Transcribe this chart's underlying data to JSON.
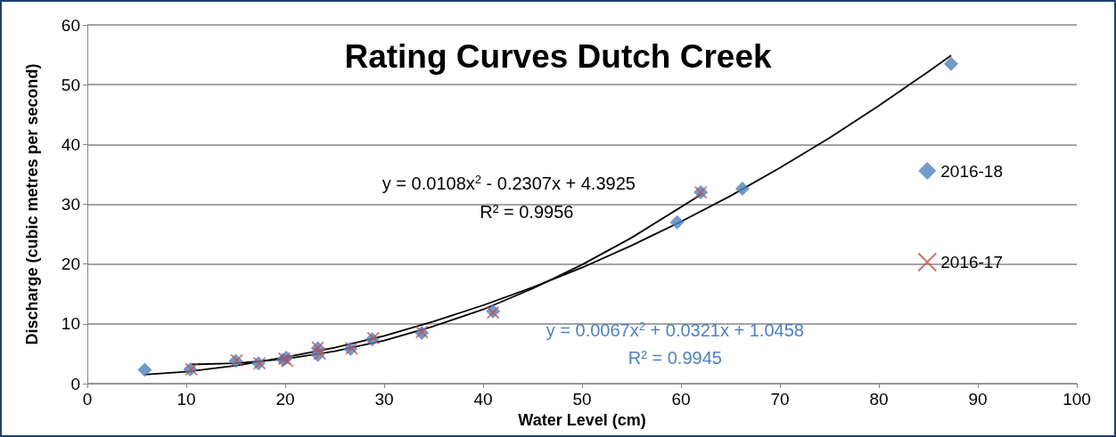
{
  "chart_data": {
    "type": "scatter",
    "title": "Rating Curves Dutch Creek",
    "xlabel": "Water Level (cm)",
    "ylabel": "Discharge (cubic metres per second)",
    "xlim": [
      0,
      100
    ],
    "xticks": [
      0,
      10,
      20,
      30,
      40,
      50,
      60,
      70,
      80,
      90,
      100
    ],
    "ylim": [
      0,
      60
    ],
    "yticks": [
      0,
      10,
      20,
      30,
      40,
      50,
      60
    ],
    "grid": "y",
    "legend": "right",
    "series": [
      {
        "name": "2016-18",
        "color": "#4f81bd",
        "marker": "diamond",
        "x": [
          5.8,
          10.4,
          15.0,
          17.3,
          19.8,
          20.1,
          23.3,
          23.3,
          26.6,
          28.8,
          33.8,
          41.0,
          59.6,
          62.0,
          66.2,
          87.3
        ],
        "values": [
          2.3,
          2.4,
          3.8,
          3.4,
          4.0,
          4.3,
          5.9,
          4.8,
          5.8,
          7.4,
          8.5,
          12.1,
          27.0,
          32.0,
          32.6,
          53.5
        ]
      },
      {
        "name": "2016-17",
        "color": "#c0504d",
        "marker": "cross",
        "x": [
          10.5,
          15.1,
          17.4,
          19.9,
          20.2,
          23.3,
          23.5,
          26.7,
          28.9,
          33.8,
          41.0,
          62.0
        ],
        "values": [
          2.4,
          3.9,
          3.4,
          4.2,
          3.8,
          6.0,
          5.0,
          5.9,
          7.6,
          8.6,
          11.9,
          32.0
        ]
      },
      {
        "type": "line",
        "color": "#000000",
        "marker": "none",
        "x": [
          5.8,
          10,
          15,
          20,
          25,
          30,
          35,
          40,
          45,
          50,
          55,
          60,
          65,
          70,
          75,
          80,
          85,
          87.3
        ],
        "values": [
          1.5,
          2.0,
          3.0,
          4.4,
          6.0,
          8.0,
          10.4,
          13.1,
          16.1,
          19.4,
          23.1,
          27.1,
          31.4,
          36.1,
          41.1,
          46.5,
          52.2,
          54.9
        ]
      },
      {
        "type": "line",
        "color": "#000000",
        "marker": "none",
        "x": [
          10.5,
          15,
          20,
          25,
          30,
          35,
          40,
          45,
          50,
          55,
          62
        ],
        "values": [
          3.2,
          3.4,
          4.1,
          5.4,
          7.2,
          9.6,
          12.4,
          15.9,
          19.9,
          24.4,
          31.6
        ]
      }
    ],
    "annotations": [
      "y = 0.0108x$^{2}$ - 0.2307x + 4.3925",
      "R² = 0.9956",
      "y = 0.0067x$^{2}$ + 0.0321x + 1.0458",
      "R² = 0.9945"
    ]
  }
}
